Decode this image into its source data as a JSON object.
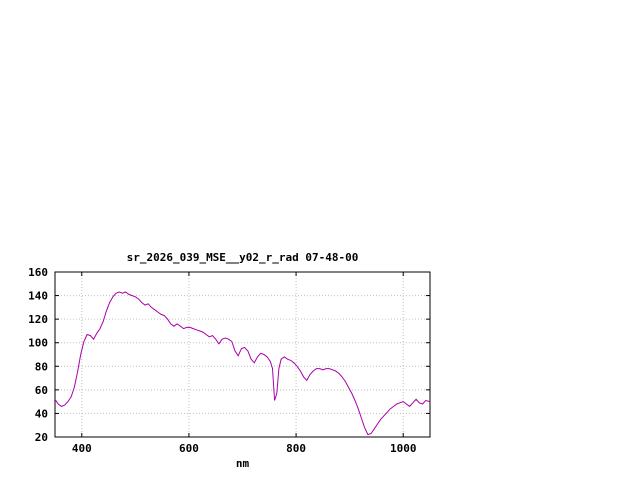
{
  "page": {
    "background": "#ffffff"
  },
  "chart_data": {
    "type": "line",
    "title": "sr_2026_039_MSE__y02_r_rad 07-48-00",
    "xlabel": "nm",
    "ylabel": "",
    "xlim": [
      350,
      1050
    ],
    "ylim": [
      20,
      160
    ],
    "xticks": [
      400,
      600,
      800,
      1000
    ],
    "yticks": [
      20,
      40,
      60,
      80,
      100,
      120,
      140,
      160
    ],
    "grid": true,
    "grid_color": "#c0c0c0",
    "line_color": "#aa00aa",
    "legend_position": "none",
    "series": [
      {
        "name": "sr_2026_039_MSE__y02_r_rad",
        "x": [
          350,
          356,
          362,
          368,
          374,
          380,
          386,
          392,
          398,
          404,
          410,
          416,
          422,
          428,
          434,
          440,
          446,
          452,
          458,
          464,
          470,
          476,
          482,
          488,
          494,
          500,
          506,
          512,
          518,
          524,
          530,
          536,
          542,
          548,
          554,
          560,
          566,
          572,
          578,
          584,
          590,
          596,
          602,
          608,
          614,
          620,
          626,
          632,
          638,
          644,
          650,
          656,
          662,
          668,
          674,
          680,
          686,
          692,
          698,
          704,
          710,
          716,
          722,
          728,
          734,
          740,
          746,
          752,
          756,
          760,
          764,
          768,
          772,
          778,
          784,
          790,
          796,
          802,
          808,
          814,
          820,
          826,
          832,
          838,
          844,
          850,
          856,
          862,
          868,
          874,
          880,
          886,
          892,
          898,
          904,
          910,
          916,
          922,
          928,
          934,
          940,
          946,
          952,
          958,
          964,
          970,
          976,
          982,
          988,
          994,
          1000,
          1006,
          1012,
          1018,
          1024,
          1030,
          1036,
          1042,
          1050
        ],
        "y": [
          52,
          48,
          46,
          47,
          50,
          54,
          62,
          75,
          90,
          101,
          107,
          106,
          103,
          108,
          112,
          118,
          127,
          134,
          139,
          142,
          143,
          142,
          143,
          141,
          140,
          139,
          137,
          134,
          132,
          133,
          130,
          128,
          126,
          124,
          123,
          120,
          116,
          114,
          116,
          114,
          112,
          113,
          113,
          112,
          111,
          110,
          109,
          107,
          105,
          106,
          103,
          99,
          103,
          104,
          103,
          101,
          93,
          89,
          95,
          96,
          93,
          86,
          83,
          88,
          91,
          90,
          88,
          84,
          78,
          51,
          57,
          78,
          86,
          88,
          86,
          85,
          83,
          80,
          76,
          71,
          68,
          73,
          76,
          78,
          78,
          77,
          78,
          78,
          77,
          76,
          74,
          71,
          67,
          62,
          57,
          51,
          44,
          36,
          28,
          22,
          23,
          27,
          31,
          35,
          38,
          41,
          44,
          46,
          48,
          49,
          50,
          48,
          46,
          49,
          52,
          49,
          48,
          51,
          50
        ]
      }
    ]
  }
}
